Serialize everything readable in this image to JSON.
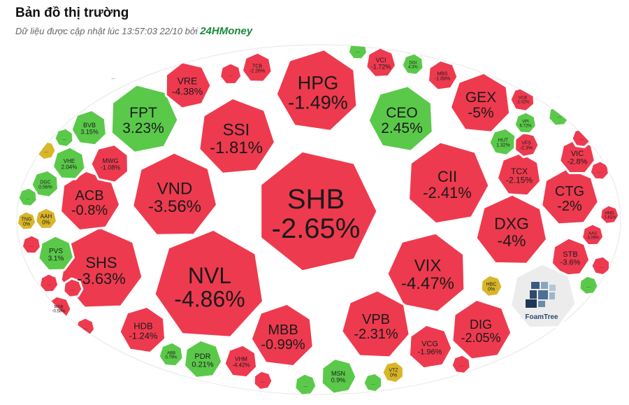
{
  "header": {
    "title": "Bản đồ thị trường",
    "subtitle_prefix": "Dữ liệu được cập nhật lúc 13:57:03 22/10 bởi",
    "brand": "24HMoney"
  },
  "colors": {
    "down": "#ee3a4f",
    "up": "#5ac94a",
    "flat": "#d9b52a",
    "border": "#ffffff"
  },
  "logo": {
    "label": "FoamTree"
  },
  "chart_data": {
    "type": "treemap",
    "title": "Bản đồ thị trường",
    "cells": [
      {
        "name": "SHB",
        "change": "-2.65%",
        "dir": "down"
      },
      {
        "name": "HPG",
        "change": "-1.49%",
        "dir": "down"
      },
      {
        "name": "NVL",
        "change": "-4.86%",
        "dir": "down"
      },
      {
        "name": "VND",
        "change": "-3.56%",
        "dir": "down"
      },
      {
        "name": "SSI",
        "change": "-1.81%",
        "dir": "down"
      },
      {
        "name": "CII",
        "change": "-2.41%",
        "dir": "down"
      },
      {
        "name": "VIX",
        "change": "-4.47%",
        "dir": "down"
      },
      {
        "name": "MBB",
        "change": "-0.99%",
        "dir": "down"
      },
      {
        "name": "VPB",
        "change": "-2.31%",
        "dir": "down"
      },
      {
        "name": "SHS",
        "change": "-3.63%",
        "dir": "down"
      },
      {
        "name": "ACB",
        "change": "-0.8%",
        "dir": "down"
      },
      {
        "name": "FPT",
        "change": "3.23%",
        "dir": "up"
      },
      {
        "name": "CEO",
        "change": "2.45%",
        "dir": "up"
      },
      {
        "name": "GEX",
        "change": "-5%",
        "dir": "down"
      },
      {
        "name": "DXG",
        "change": "-4%",
        "dir": "down"
      },
      {
        "name": "CTG",
        "change": "-2%",
        "dir": "down"
      },
      {
        "name": "DIG",
        "change": "-2.05%",
        "dir": "down"
      },
      {
        "name": "VRE",
        "change": "-4.38%",
        "dir": "down"
      },
      {
        "name": "HDB",
        "change": "-1.24%",
        "dir": "down"
      },
      {
        "name": "TCX",
        "change": "-2.15%",
        "dir": "down"
      },
      {
        "name": "VIC",
        "change": "-2.8%",
        "dir": "down"
      },
      {
        "name": "STB",
        "change": "-3.6%",
        "dir": "down"
      },
      {
        "name": "VCG",
        "change": "-1.96%",
        "dir": "down"
      },
      {
        "name": "MWG",
        "change": "-1.08%",
        "dir": "down"
      },
      {
        "name": "BVB",
        "change": "3.15%",
        "dir": "up"
      },
      {
        "name": "VHE",
        "change": "2.04%",
        "dir": "up"
      },
      {
        "name": "PVS",
        "change": "3.1%",
        "dir": "up"
      },
      {
        "name": "PDR",
        "change": "0.21%",
        "dir": "up"
      },
      {
        "name": "MSN",
        "change": "0.9%",
        "dir": "up"
      },
      {
        "name": "HUT",
        "change": "1.32%",
        "dir": "up"
      },
      {
        "name": "VHM",
        "change": "-4.42%",
        "dir": "down"
      },
      {
        "name": "TCB",
        "change": "-2.26%",
        "dir": "down"
      },
      {
        "name": "VCI",
        "change": "-1.72%",
        "dir": "down"
      },
      {
        "name": "MBS",
        "change": "-1.89%",
        "dir": "down"
      },
      {
        "name": "VFS",
        "change": "-2.3%",
        "dir": "down"
      },
      {
        "name": "DGC",
        "change": "0.56%",
        "dir": "up"
      },
      {
        "name": "ABB",
        "change": "0.79%",
        "dir": "up"
      },
      {
        "name": "AAH",
        "change": "0%",
        "dir": "flat"
      },
      {
        "name": "TNG",
        "change": "0%",
        "dir": "flat"
      },
      {
        "name": "HBC",
        "change": "0%",
        "dir": "flat"
      },
      {
        "name": "VTZ",
        "change": "0%",
        "dir": "flat"
      },
      {
        "name": "DGI",
        "change": "4.3%",
        "dir": "up"
      },
      {
        "name": "VPI",
        "change": "6.72%",
        "dir": "up"
      },
      {
        "name": "AAS",
        "change": "-3.09%",
        "dir": "down"
      },
      {
        "name": "HNG",
        "change": "-1.61%",
        "dir": "down"
      },
      {
        "name": "MSB",
        "change": "-0.58%",
        "dir": "down"
      },
      {
        "name": "VCB",
        "change": "-1.02%",
        "dir": "down"
      },
      {
        "name": "",
        "change": "...",
        "dir": "up"
      },
      {
        "name": "",
        "change": "...",
        "dir": "down"
      },
      {
        "name": "",
        "change": "...",
        "dir": "down"
      },
      {
        "name": "",
        "change": "...",
        "dir": "down"
      },
      {
        "name": "",
        "change": "...",
        "dir": "flat"
      },
      {
        "name": "",
        "change": "...",
        "dir": "up"
      },
      {
        "name": "",
        "change": "...",
        "dir": "up"
      },
      {
        "name": "",
        "change": "...",
        "dir": "down"
      },
      {
        "name": "",
        "change": "...",
        "dir": "up"
      },
      {
        "name": "",
        "change": "...",
        "dir": "up"
      },
      {
        "name": "",
        "change": "...",
        "dir": "down"
      },
      {
        "name": "",
        "change": "...",
        "dir": "down"
      },
      {
        "name": "",
        "change": "...",
        "dir": "down"
      },
      {
        "name": "",
        "change": "...",
        "dir": "down"
      },
      {
        "name": "",
        "change": "...",
        "dir": "up"
      },
      {
        "name": "",
        "change": "...",
        "dir": "down"
      },
      {
        "name": "",
        "change": "...",
        "dir": "up"
      },
      {
        "name": "",
        "change": "...",
        "dir": "down"
      },
      {
        "name": "",
        "change": "...",
        "dir": "up"
      }
    ]
  }
}
